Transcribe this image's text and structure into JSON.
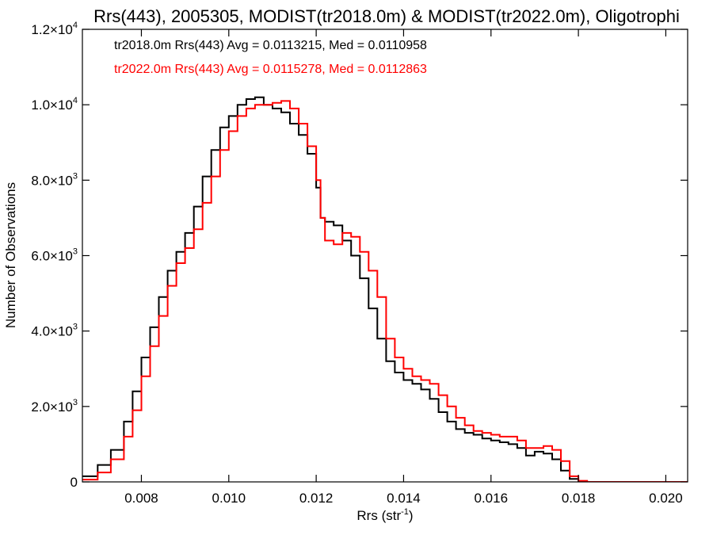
{
  "chart_data": {
    "type": "line",
    "step": true,
    "title": "Rrs(443), 2005305, MODIST(tr2018.0m) & MODIST(tr2022.0m), Oligotrophi",
    "xlabel": "Rrs (str",
    "xlabel_sup": "-1",
    "xlabel_suffix": ")",
    "ylabel": "Number of Observations",
    "xlim": [
      0.00665,
      0.0205
    ],
    "ylim": [
      0,
      12000
    ],
    "x_ticks": [
      0.008,
      0.01,
      0.012,
      0.014,
      0.016,
      0.018,
      0.02
    ],
    "x_tick_labels": [
      "0.008",
      "0.010",
      "0.012",
      "0.014",
      "0.016",
      "0.018",
      "0.020"
    ],
    "y_ticks": [
      {
        "value": 0,
        "mantissa": "0",
        "exp": ""
      },
      {
        "value": 2000,
        "mantissa": "2.0×10",
        "exp": "3"
      },
      {
        "value": 4000,
        "mantissa": "4.0×10",
        "exp": "3"
      },
      {
        "value": 6000,
        "mantissa": "6.0×10",
        "exp": "3"
      },
      {
        "value": 8000,
        "mantissa": "8.0×10",
        "exp": "3"
      },
      {
        "value": 10000,
        "mantissa": "1.0×10",
        "exp": "4"
      },
      {
        "value": 12000,
        "mantissa": "1.2×10",
        "exp": "4"
      }
    ],
    "legend": [
      {
        "text": "tr2018.0m Rrs(443) Avg = 0.0113215, Med = 0.0110958",
        "color": "#000000"
      },
      {
        "text": "tr2022.0m Rrs(443) Avg = 0.0115278, Med = 0.0112863",
        "color": "#ff0000"
      }
    ],
    "series": [
      {
        "color": "#000000",
        "points": [
          [
            0.00665,
            150
          ],
          [
            0.007,
            450
          ],
          [
            0.0073,
            850
          ],
          [
            0.0076,
            1600
          ],
          [
            0.0078,
            2400
          ],
          [
            0.008,
            3300
          ],
          [
            0.0082,
            4100
          ],
          [
            0.0084,
            4900
          ],
          [
            0.0086,
            5600
          ],
          [
            0.0088,
            6100
          ],
          [
            0.009,
            6600
          ],
          [
            0.0092,
            7300
          ],
          [
            0.0094,
            8100
          ],
          [
            0.0096,
            8800
          ],
          [
            0.0098,
            9400
          ],
          [
            0.01,
            9700
          ],
          [
            0.0102,
            10000
          ],
          [
            0.0104,
            10150
          ],
          [
            0.0106,
            10200
          ],
          [
            0.0108,
            10000
          ],
          [
            0.011,
            9900
          ],
          [
            0.0112,
            9800
          ],
          [
            0.0114,
            9500
          ],
          [
            0.0116,
            9200
          ],
          [
            0.0118,
            8700
          ],
          [
            0.012,
            7800
          ],
          [
            0.0121,
            7000
          ],
          [
            0.0122,
            6900
          ],
          [
            0.0124,
            6800
          ],
          [
            0.0126,
            6400
          ],
          [
            0.0128,
            6000
          ],
          [
            0.013,
            5400
          ],
          [
            0.0132,
            4600
          ],
          [
            0.0134,
            3800
          ],
          [
            0.0136,
            3200
          ],
          [
            0.0138,
            2900
          ],
          [
            0.014,
            2700
          ],
          [
            0.0142,
            2600
          ],
          [
            0.0144,
            2450
          ],
          [
            0.0146,
            2200
          ],
          [
            0.0148,
            1850
          ],
          [
            0.015,
            1600
          ],
          [
            0.0152,
            1400
          ],
          [
            0.0154,
            1300
          ],
          [
            0.0156,
            1250
          ],
          [
            0.0158,
            1150
          ],
          [
            0.016,
            1100
          ],
          [
            0.0162,
            1050
          ],
          [
            0.0164,
            1000
          ],
          [
            0.0166,
            900
          ],
          [
            0.0168,
            700
          ],
          [
            0.017,
            800
          ],
          [
            0.0172,
            750
          ],
          [
            0.0174,
            600
          ],
          [
            0.0176,
            300
          ],
          [
            0.0178,
            80
          ],
          [
            0.018,
            20
          ],
          [
            0.0182,
            0
          ],
          [
            0.0205,
            0
          ]
        ]
      },
      {
        "color": "#ff0000",
        "points": [
          [
            0.00665,
            60
          ],
          [
            0.007,
            250
          ],
          [
            0.0073,
            600
          ],
          [
            0.0076,
            1200
          ],
          [
            0.0078,
            1900
          ],
          [
            0.008,
            2800
          ],
          [
            0.0082,
            3600
          ],
          [
            0.0084,
            4400
          ],
          [
            0.0086,
            5200
          ],
          [
            0.0088,
            5800
          ],
          [
            0.009,
            6200
          ],
          [
            0.0092,
            6700
          ],
          [
            0.0094,
            7400
          ],
          [
            0.0096,
            8100
          ],
          [
            0.0098,
            8800
          ],
          [
            0.01,
            9300
          ],
          [
            0.0102,
            9700
          ],
          [
            0.0104,
            9900
          ],
          [
            0.0106,
            10000
          ],
          [
            0.0108,
            10000
          ],
          [
            0.011,
            10050
          ],
          [
            0.0112,
            10100
          ],
          [
            0.0114,
            9900
          ],
          [
            0.0116,
            9500
          ],
          [
            0.0118,
            8900
          ],
          [
            0.012,
            8000
          ],
          [
            0.0121,
            7000
          ],
          [
            0.0122,
            6400
          ],
          [
            0.0124,
            6300
          ],
          [
            0.0126,
            6600
          ],
          [
            0.0128,
            6500
          ],
          [
            0.013,
            6100
          ],
          [
            0.0132,
            5600
          ],
          [
            0.0134,
            4900
          ],
          [
            0.0136,
            3800
          ],
          [
            0.0138,
            3300
          ],
          [
            0.014,
            3000
          ],
          [
            0.0142,
            2800
          ],
          [
            0.0144,
            2700
          ],
          [
            0.0146,
            2600
          ],
          [
            0.0148,
            2300
          ],
          [
            0.015,
            2000
          ],
          [
            0.0152,
            1700
          ],
          [
            0.0154,
            1500
          ],
          [
            0.0156,
            1350
          ],
          [
            0.0158,
            1300
          ],
          [
            0.016,
            1250
          ],
          [
            0.0162,
            1200
          ],
          [
            0.0164,
            1200
          ],
          [
            0.0166,
            1100
          ],
          [
            0.0168,
            900
          ],
          [
            0.017,
            900
          ],
          [
            0.0172,
            950
          ],
          [
            0.0174,
            850
          ],
          [
            0.0176,
            550
          ],
          [
            0.0178,
            150
          ],
          [
            0.018,
            30
          ],
          [
            0.0182,
            0
          ],
          [
            0.0205,
            0
          ]
        ]
      }
    ]
  }
}
